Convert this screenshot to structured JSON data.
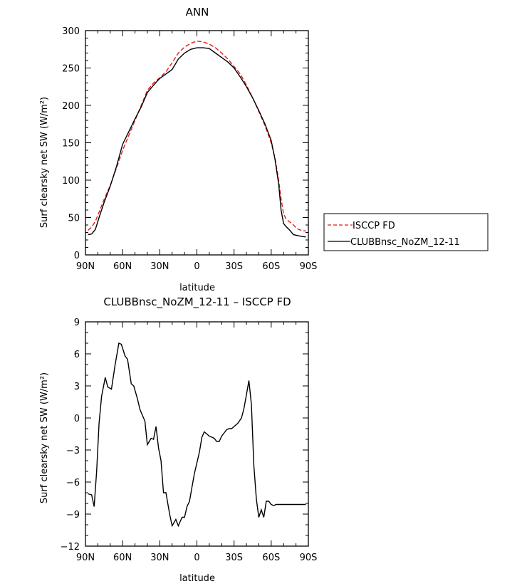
{
  "chart_data": [
    {
      "type": "line",
      "title": "ANN",
      "xlabel": "latitude",
      "ylabel": "Surf clearsky net SW (W/m²)",
      "xlim": [
        -90,
        90
      ],
      "ylim": [
        0,
        300
      ],
      "x_tick_labels": [
        "90N",
        "60N",
        "30N",
        "0",
        "30S",
        "60S",
        "90S"
      ],
      "y_ticks": [
        0,
        50,
        100,
        150,
        200,
        250,
        300
      ],
      "legend": {
        "position": "right"
      },
      "series": [
        {
          "name": "ISCCP FD",
          "color": "#e41a1c",
          "dash": "dashed",
          "x": [
            -88,
            -85,
            -82,
            -79,
            -75,
            -70,
            -65,
            -60,
            -55,
            -50,
            -45,
            -40,
            -35,
            -30,
            -25,
            -20,
            -15,
            -10,
            -5,
            0,
            5,
            10,
            15,
            20,
            25,
            30,
            35,
            40,
            45,
            50,
            55,
            60,
            63,
            66,
            68,
            70,
            72,
            75,
            78,
            81,
            84,
            88
          ],
          "y": [
            33,
            37,
            45,
            57,
            74,
            93,
            116,
            140,
            160,
            180,
            200,
            220,
            230,
            237,
            245,
            257,
            270,
            278,
            283,
            286,
            285,
            282,
            277,
            270,
            262,
            252,
            242,
            227,
            210,
            192,
            173,
            150,
            130,
            100,
            75,
            55,
            48,
            44,
            40,
            35,
            33,
            32
          ]
        },
        {
          "name": "CLUBBnsc_NoZM_12-11",
          "color": "#000000",
          "dash": "solid",
          "x": [
            -88,
            -85,
            -82,
            -79,
            -75,
            -70,
            -65,
            -60,
            -55,
            -50,
            -45,
            -40,
            -35,
            -30,
            -25,
            -20,
            -15,
            -10,
            -5,
            0,
            5,
            10,
            15,
            20,
            25,
            30,
            35,
            40,
            45,
            50,
            55,
            60,
            63,
            66,
            68,
            70,
            72,
            75,
            78,
            81,
            84,
            88
          ],
          "y": [
            27,
            28,
            34,
            50,
            70,
            92,
            118,
            148,
            165,
            182,
            198,
            217,
            227,
            236,
            242,
            248,
            262,
            270,
            275,
            277,
            277,
            276,
            270,
            264,
            258,
            250,
            238,
            225,
            210,
            193,
            175,
            153,
            128,
            95,
            60,
            42,
            38,
            33,
            27,
            26,
            25,
            24
          ]
        }
      ]
    },
    {
      "type": "line",
      "title": "CLUBBnsc_NoZM_12-11 – ISCCP FD",
      "xlabel": "latitude",
      "ylabel": "Surf clearsky net SW (W/m²)",
      "xlim": [
        -90,
        90
      ],
      "ylim": [
        -12,
        9
      ],
      "x_tick_labels": [
        "90N",
        "60N",
        "30N",
        "0",
        "30S",
        "60S",
        "90S"
      ],
      "y_ticks": [
        -12,
        -9,
        -6,
        -3,
        0,
        3,
        6,
        9
      ],
      "series": [
        {
          "color": "#000000",
          "dash": "solid",
          "x": [
            -88,
            -85,
            -83,
            -81,
            -79,
            -77,
            -74,
            -72,
            -69,
            -66,
            -63,
            -61,
            -58,
            -56,
            -53,
            -51,
            -48,
            -46,
            -42,
            -40,
            -37,
            -35,
            -33,
            -31,
            -29,
            -27,
            -25,
            -22,
            -20,
            -17,
            -15,
            -12,
            -10,
            -8,
            -6,
            -4,
            -2,
            0,
            2,
            4,
            6,
            8,
            10,
            12,
            14,
            16,
            18,
            20,
            22,
            24,
            26,
            28,
            30,
            33,
            36,
            38,
            40,
            42,
            44,
            46,
            48,
            50,
            52,
            54,
            56,
            58,
            60,
            62,
            64,
            66,
            68,
            70,
            72,
            74,
            76,
            78,
            80,
            82,
            84,
            86,
            88
          ],
          "y": [
            -7.1,
            -7.2,
            -8.3,
            -5,
            -0.5,
            2,
            3.8,
            2.9,
            2.7,
            5,
            7,
            6.9,
            5.8,
            5.5,
            3.2,
            3,
            1.8,
            0.8,
            -0.3,
            -2.5,
            -1.9,
            -2,
            -0.8,
            -2.8,
            -4,
            -7,
            -7,
            -9,
            -10.1,
            -9.5,
            -10.1,
            -9.3,
            -9.3,
            -8.3,
            -7.8,
            -6.5,
            -5.2,
            -4.2,
            -3.2,
            -1.8,
            -1.3,
            -1.5,
            -1.7,
            -1.8,
            -1.9,
            -2.2,
            -2.2,
            -1.7,
            -1.4,
            -1.1,
            -1.0,
            -1.0,
            -0.8,
            -0.5,
            0.0,
            0.9,
            2.2,
            3.5,
            1.3,
            -4.5,
            -7.6,
            -9.3,
            -8.6,
            -9.3,
            -7.8,
            -7.8,
            -8.1,
            -8.2,
            -8.1,
            -8.1,
            -8.1,
            -8.1,
            -8.1,
            -8.1,
            -8.1,
            -8.1,
            -8.1,
            -8.1,
            -8.1,
            -8.1,
            -8.1
          ]
        }
      ]
    }
  ]
}
